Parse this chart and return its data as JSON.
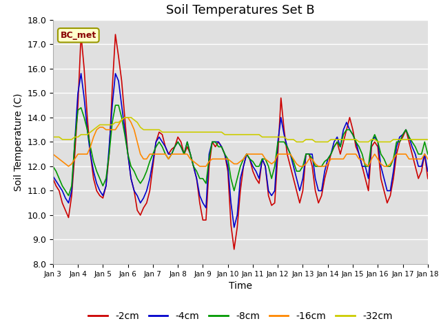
{
  "title": "Soil Temperatures Set B",
  "xlabel": "Time",
  "ylabel": "Soil Temperature (C)",
  "ylim": [
    8.0,
    18.0
  ],
  "yticks": [
    8.0,
    9.0,
    10.0,
    11.0,
    12.0,
    13.0,
    14.0,
    15.0,
    16.0,
    17.0,
    18.0
  ],
  "xtick_labels": [
    "Jan 3",
    "Jan 4",
    "Jan 5",
    "Jan 6",
    "Jan 7",
    "Jan 8",
    "Jan 9",
    "Jan 10",
    "Jan 11",
    "Jan 12",
    "Jan 13",
    "Jan 14",
    "Jan 15",
    "Jan 16",
    "Jan 17",
    "Jan 18"
  ],
  "series_colors": [
    "#cc0000",
    "#0000cc",
    "#009900",
    "#ff8800",
    "#cccc00"
  ],
  "series_labels": [
    "-2cm",
    "-4cm",
    "-8cm",
    "-16cm",
    "-32cm"
  ],
  "label_box_text": "BC_met",
  "label_box_facecolor": "#ffffcc",
  "label_box_edgecolor": "#999900",
  "label_box_textcolor": "#880000",
  "background_color": "#e0e0e0",
  "grid_color": "#ffffff",
  "depth_2cm": [
    11.5,
    11.2,
    11.0,
    10.5,
    10.2,
    9.9,
    10.8,
    12.5,
    14.5,
    17.4,
    16.0,
    14.0,
    12.5,
    11.5,
    11.0,
    10.8,
    10.7,
    11.2,
    12.5,
    15.2,
    17.4,
    16.5,
    15.5,
    14.0,
    12.5,
    11.5,
    11.0,
    10.2,
    10.0,
    10.3,
    10.5,
    11.0,
    12.0,
    13.0,
    13.4,
    13.3,
    12.8,
    12.5,
    12.7,
    12.8,
    13.2,
    13.0,
    12.5,
    12.8,
    12.5,
    12.0,
    11.5,
    10.5,
    9.8,
    9.8,
    12.0,
    13.0,
    12.8,
    13.0,
    12.8,
    12.5,
    11.8,
    9.6,
    8.6,
    9.5,
    11.0,
    12.0,
    12.5,
    12.3,
    11.8,
    11.5,
    11.3,
    12.3,
    12.0,
    10.8,
    10.4,
    10.5,
    12.5,
    14.8,
    13.5,
    12.5,
    12.0,
    11.5,
    11.0,
    10.5,
    11.0,
    12.5,
    12.5,
    12.0,
    11.0,
    10.5,
    10.8,
    11.5,
    12.0,
    12.5,
    12.8,
    13.0,
    12.5,
    13.0,
    13.5,
    14.0,
    13.5,
    12.8,
    12.5,
    12.0,
    11.5,
    11.0,
    12.8,
    13.0,
    12.8,
    11.5,
    11.0,
    10.5,
    10.8,
    11.5,
    12.5,
    13.0,
    13.2,
    13.5,
    13.0,
    12.5,
    12.0,
    11.5,
    11.8,
    12.5,
    11.5
  ],
  "depth_4cm": [
    11.6,
    11.4,
    11.2,
    11.0,
    10.7,
    10.5,
    11.0,
    13.0,
    15.0,
    15.8,
    14.8,
    13.5,
    12.5,
    11.8,
    11.3,
    11.0,
    10.8,
    11.2,
    12.8,
    14.5,
    15.8,
    15.5,
    14.5,
    13.5,
    12.5,
    11.5,
    11.0,
    10.8,
    10.5,
    10.7,
    11.0,
    11.5,
    12.2,
    13.0,
    13.2,
    13.0,
    12.8,
    12.5,
    12.5,
    12.8,
    13.0,
    12.8,
    12.5,
    13.0,
    12.5,
    12.0,
    11.5,
    10.8,
    10.5,
    10.3,
    12.5,
    13.0,
    13.0,
    13.0,
    12.8,
    12.5,
    12.0,
    10.5,
    9.5,
    10.0,
    11.5,
    12.0,
    12.5,
    12.3,
    12.0,
    11.8,
    11.5,
    12.3,
    12.0,
    11.0,
    10.8,
    11.0,
    13.0,
    14.0,
    13.3,
    12.8,
    12.5,
    12.0,
    11.5,
    11.0,
    11.5,
    12.5,
    12.5,
    12.5,
    11.5,
    11.0,
    11.0,
    11.8,
    12.3,
    12.5,
    13.0,
    13.2,
    12.8,
    13.5,
    13.8,
    13.5,
    13.3,
    13.0,
    12.5,
    12.0,
    12.0,
    11.5,
    13.0,
    13.2,
    13.0,
    12.0,
    11.5,
    11.0,
    11.0,
    11.8,
    12.8,
    13.2,
    13.3,
    13.5,
    13.2,
    12.8,
    12.5,
    12.0,
    12.0,
    12.5,
    11.8
  ],
  "depth_8cm": [
    12.0,
    11.8,
    11.5,
    11.2,
    11.0,
    10.8,
    11.2,
    13.0,
    14.3,
    14.4,
    14.0,
    13.5,
    12.8,
    12.2,
    11.8,
    11.5,
    11.2,
    11.5,
    12.5,
    13.8,
    14.5,
    14.5,
    14.0,
    13.3,
    12.5,
    12.0,
    11.8,
    11.5,
    11.3,
    11.5,
    11.8,
    12.2,
    12.5,
    12.8,
    13.0,
    12.8,
    12.5,
    12.3,
    12.5,
    12.8,
    13.0,
    12.8,
    12.5,
    13.0,
    12.5,
    12.0,
    11.8,
    11.5,
    11.5,
    11.3,
    12.3,
    13.0,
    13.0,
    12.8,
    12.8,
    12.5,
    12.3,
    11.5,
    11.0,
    11.5,
    12.0,
    12.3,
    12.5,
    12.3,
    12.2,
    12.0,
    12.0,
    12.3,
    12.3,
    12.0,
    11.5,
    12.0,
    13.0,
    13.0,
    13.0,
    12.8,
    12.5,
    12.2,
    11.8,
    11.8,
    12.0,
    12.5,
    12.5,
    12.3,
    12.0,
    12.0,
    12.0,
    12.2,
    12.3,
    12.5,
    12.8,
    13.0,
    12.8,
    13.3,
    13.5,
    13.5,
    13.3,
    13.0,
    12.8,
    12.5,
    12.0,
    12.0,
    13.0,
    13.3,
    13.0,
    12.5,
    12.3,
    12.0,
    12.0,
    12.3,
    13.0,
    13.0,
    13.3,
    13.5,
    13.2,
    13.0,
    12.8,
    12.5,
    12.5,
    13.0,
    12.5
  ],
  "depth_16cm": [
    12.5,
    12.4,
    12.3,
    12.2,
    12.1,
    12.0,
    12.1,
    12.3,
    12.5,
    12.5,
    12.5,
    12.5,
    12.8,
    13.2,
    13.5,
    13.6,
    13.6,
    13.5,
    13.5,
    13.5,
    13.5,
    13.7,
    13.9,
    14.0,
    14.0,
    13.8,
    13.5,
    13.0,
    12.5,
    12.3,
    12.3,
    12.5,
    12.5,
    12.5,
    12.5,
    12.5,
    12.5,
    12.3,
    12.5,
    12.5,
    12.5,
    12.5,
    12.5,
    12.5,
    12.3,
    12.2,
    12.1,
    12.0,
    12.0,
    12.0,
    12.2,
    12.3,
    12.3,
    12.3,
    12.3,
    12.3,
    12.3,
    12.2,
    12.1,
    12.1,
    12.2,
    12.3,
    12.5,
    12.5,
    12.5,
    12.5,
    12.5,
    12.5,
    12.3,
    12.2,
    12.1,
    12.2,
    12.5,
    12.5,
    12.5,
    12.5,
    12.5,
    12.3,
    12.1,
    12.0,
    12.0,
    12.1,
    12.3,
    12.3,
    12.1,
    12.0,
    12.0,
    12.0,
    12.1,
    12.3,
    12.3,
    12.3,
    12.3,
    12.3,
    12.5,
    12.5,
    12.5,
    12.5,
    12.3,
    12.3,
    12.1,
    12.0,
    12.3,
    12.5,
    12.3,
    12.1,
    12.0,
    12.0,
    12.1,
    12.3,
    12.5,
    12.5,
    12.5,
    12.5,
    12.3,
    12.3,
    12.3,
    12.3,
    12.3,
    12.5,
    12.3
  ],
  "depth_32cm": [
    13.2,
    13.2,
    13.2,
    13.1,
    13.1,
    13.1,
    13.1,
    13.2,
    13.2,
    13.3,
    13.3,
    13.3,
    13.4,
    13.5,
    13.6,
    13.7,
    13.7,
    13.7,
    13.7,
    13.7,
    13.8,
    13.8,
    13.9,
    14.0,
    14.0,
    14.0,
    13.9,
    13.8,
    13.6,
    13.5,
    13.5,
    13.5,
    13.5,
    13.5,
    13.5,
    13.4,
    13.4,
    13.4,
    13.4,
    13.4,
    13.4,
    13.4,
    13.4,
    13.4,
    13.4,
    13.4,
    13.4,
    13.4,
    13.4,
    13.4,
    13.4,
    13.4,
    13.4,
    13.4,
    13.4,
    13.3,
    13.3,
    13.3,
    13.3,
    13.3,
    13.3,
    13.3,
    13.3,
    13.3,
    13.3,
    13.3,
    13.3,
    13.2,
    13.2,
    13.2,
    13.2,
    13.2,
    13.2,
    13.2,
    13.2,
    13.1,
    13.1,
    13.1,
    13.0,
    13.0,
    13.0,
    13.1,
    13.1,
    13.1,
    13.0,
    13.0,
    13.0,
    13.0,
    13.0,
    13.1,
    13.1,
    13.1,
    13.1,
    13.1,
    13.1,
    13.1,
    13.1,
    13.1,
    13.0,
    13.0,
    13.0,
    13.0,
    13.1,
    13.1,
    13.0,
    13.0,
    13.0,
    13.0,
    13.0,
    13.1,
    13.1,
    13.1,
    13.1,
    13.1,
    13.1,
    13.1,
    13.1,
    13.1,
    13.1,
    13.1,
    13.1
  ]
}
